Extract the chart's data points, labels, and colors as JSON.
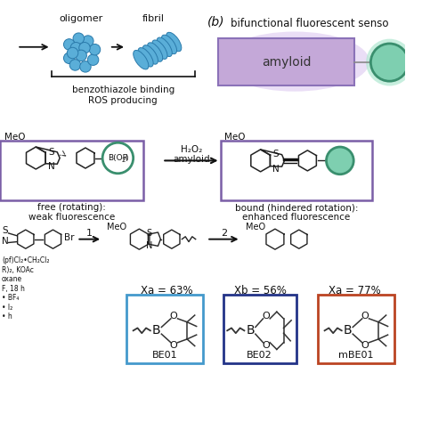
{
  "bg_color": "#ffffff",
  "title_b": "(b)",
  "subtitle_b": "bifunctional fluorescent senso",
  "amyloid_box_color": "#8b72b8",
  "amyloid_box_fill": "#c4a8d8",
  "amyloid_text": "amyloid",
  "circle_color": "#3a8f6e",
  "circle_fill": "#7ecfb0",
  "purple_border": "#7b5ea7",
  "green_border": "#3a8f6e",
  "blue_border": "#4499cc",
  "dark_blue_border": "#223388",
  "orange_border": "#bb4422",
  "text_color": "#111111",
  "arrow_color": "#111111",
  "oligomer_label": "oligomer",
  "fibril_label": "fibril",
  "benzothiazole_text1": "benzothiazole binding",
  "benzothiazole_text2": "ROS producing",
  "free_label1": "free (rotating):",
  "free_label2": "weak fluorescence",
  "bound_label1": "bound (hindered rotation):",
  "bound_label2": "enhanced fluorescence",
  "reaction_label1": "H₂O₂",
  "reaction_label2": "amyloid",
  "BE01_label": "BE01",
  "BE02_label": "BE02",
  "mBE01_label": "mBE01",
  "Xa63_label": "Xa = 63%",
  "Xb56_label": "Xb = 56%",
  "Xa77_label": "Xa = 77%",
  "reagent_lines": [
    "(pf)Cl₂•CH₂Cl₂",
    "R)₂, KOAc",
    "oxane",
    "F, 18 h",
    "• BF₄",
    "• I₂",
    "• h"
  ],
  "step1_label": "1",
  "step2_label": "2",
  "oligomer_color": "#5aaed8",
  "oligomer_edge": "#2a7aab",
  "fibril_color": "#5aaed8",
  "fibril_edge": "#2a7aab"
}
